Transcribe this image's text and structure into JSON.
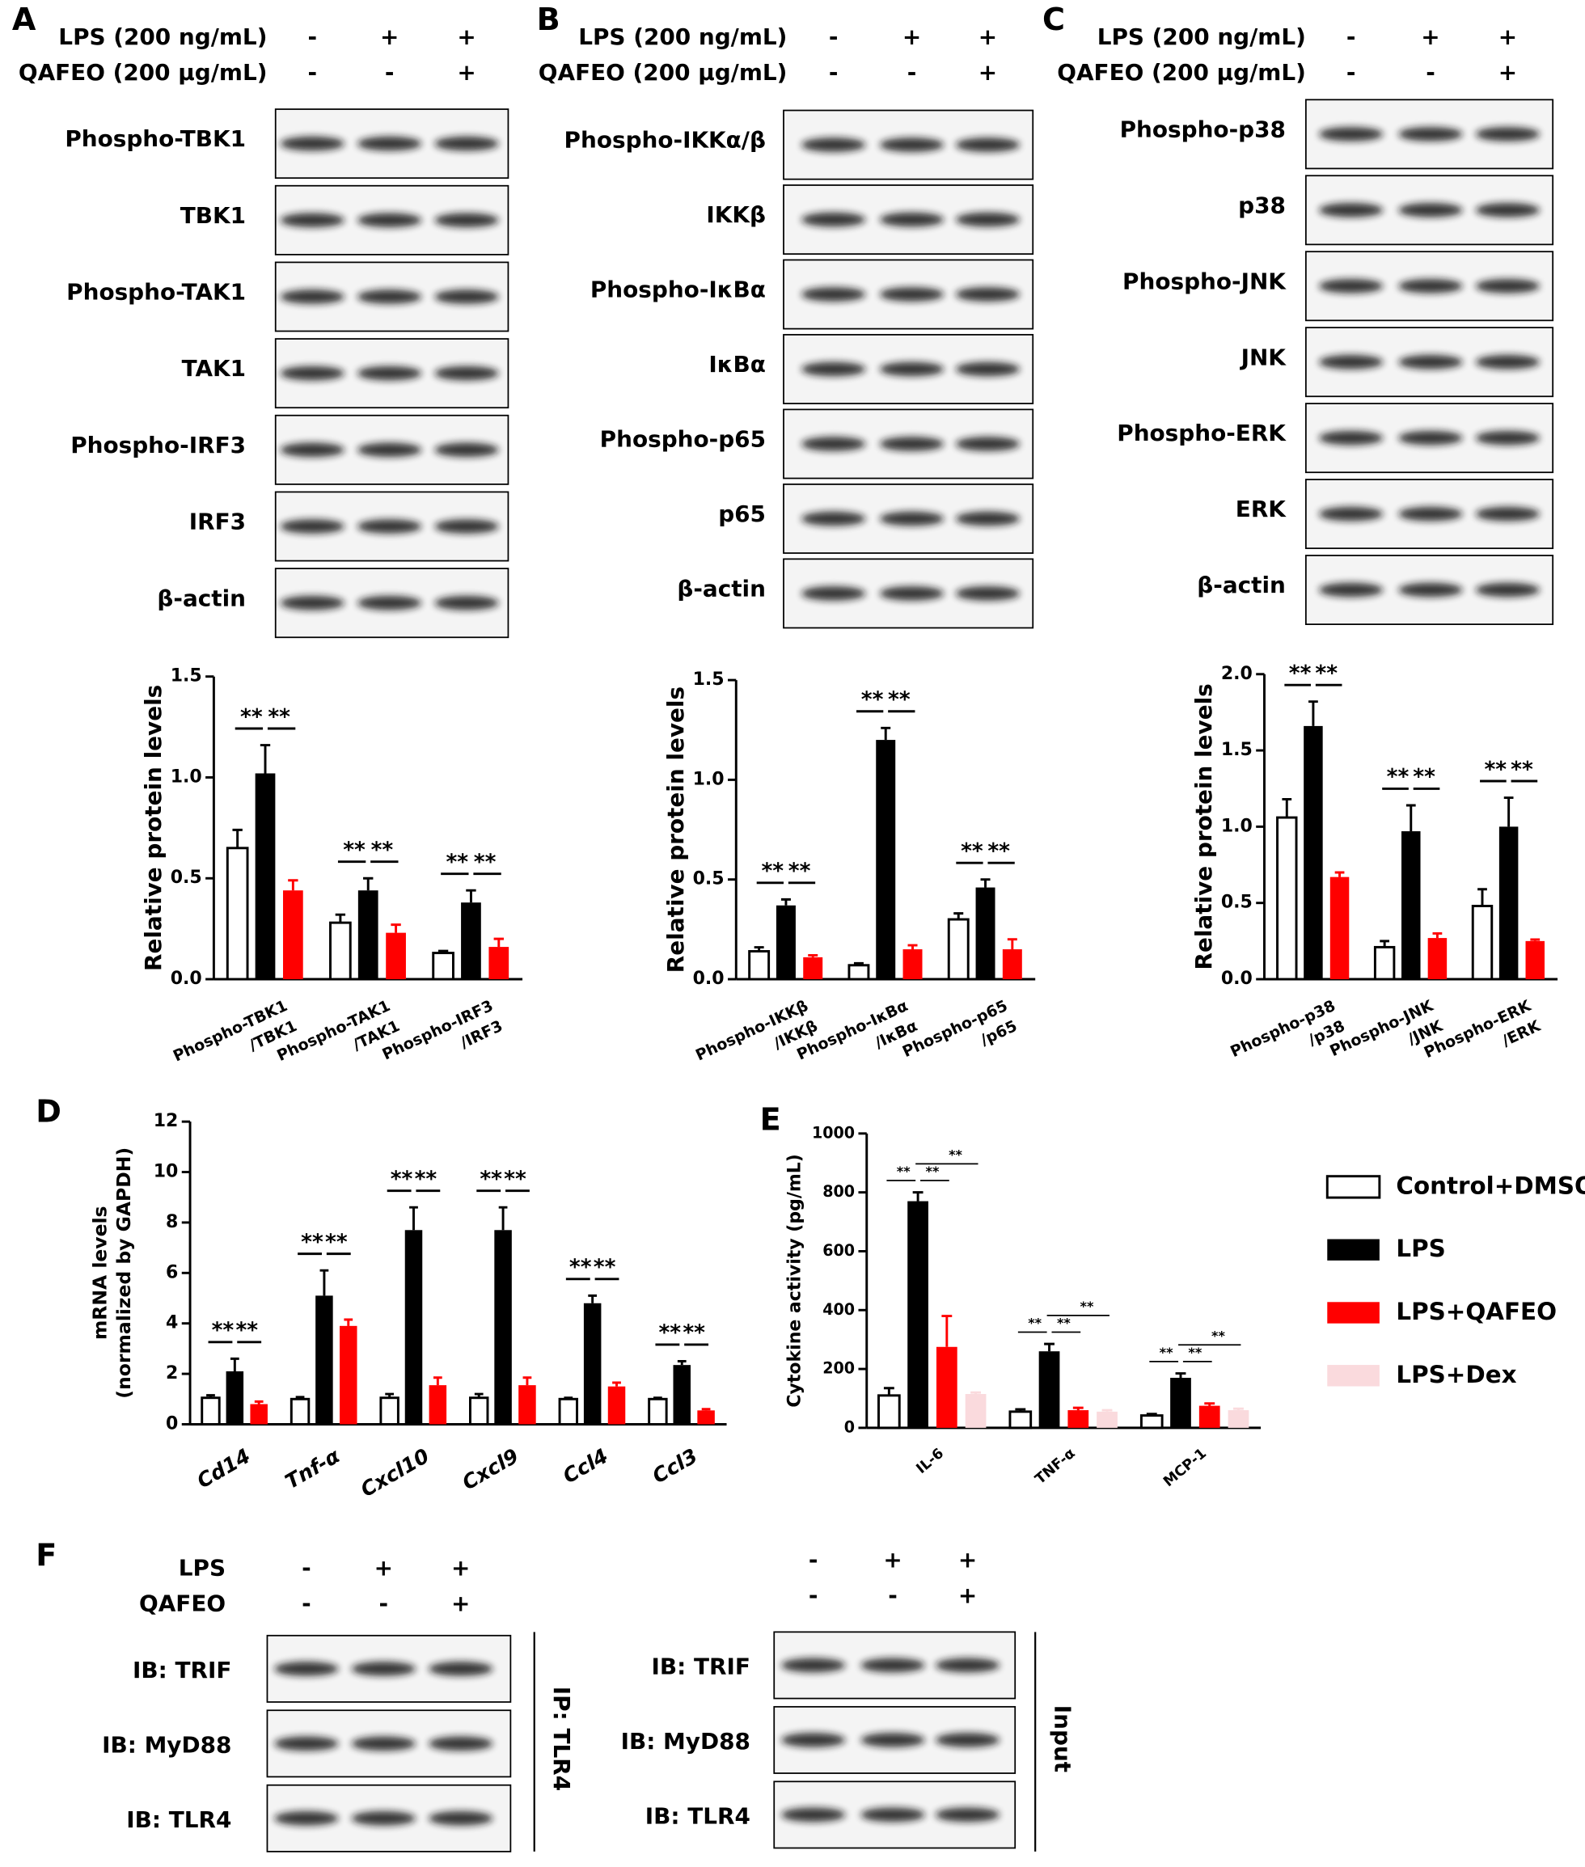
{
  "panel_labels": [
    "A",
    "B",
    "C",
    "D",
    "E",
    "F"
  ],
  "panels": [
    {
      "conditions": [
        {
          "label": "LPS (200 ng/mL)",
          "signs": [
            "-",
            "+",
            "+"
          ]
        },
        {
          "label": "QAFEO (200 μg/mL)",
          "signs": [
            "-",
            "-",
            "+"
          ]
        }
      ],
      "blots": [
        "Phospho-TBK1",
        "TBK1",
        "Phospho-TAK1",
        "TAK1",
        "Phospho-IRF3",
        "IRF3",
        "β-actin"
      ]
    },
    {
      "conditions": [
        {
          "label": "LPS (200 ng/mL)",
          "signs": [
            "-",
            "+",
            "+"
          ]
        },
        {
          "label": "QAFEO (200 μg/mL)",
          "signs": [
            "-",
            "-",
            "+"
          ]
        }
      ],
      "blots": [
        "Phospho-IKKα/β",
        "IKKβ",
        "Phospho-IκBα",
        "IκBα",
        "Phospho-p65",
        "p65",
        "β-actin"
      ]
    },
    {
      "conditions": [
        {
          "label": "LPS (200 ng/mL)",
          "signs": [
            "-",
            "+",
            "+"
          ]
        },
        {
          "label": "QAFEO (200 μg/mL)",
          "signs": [
            "-",
            "-",
            "+"
          ]
        }
      ],
      "blots": [
        "Phospho-p38",
        "p38",
        "Phospho-JNK",
        "JNK",
        "Phospho-ERK",
        "ERK",
        "β-actin"
      ]
    }
  ],
  "coip": {
    "conditions": [
      {
        "label": "LPS",
        "signs": [
          "-",
          "+",
          "+"
        ]
      },
      {
        "label": "QAFEO",
        "signs": [
          "-",
          "-",
          "+"
        ]
      }
    ],
    "ip": {
      "blots": [
        "IB: TRIF",
        "IB: MyD88",
        "IB: TLR4"
      ],
      "side_label": "IP: TLR4"
    },
    "input": {
      "signs": [
        [
          "-",
          "+",
          "+"
        ],
        [
          "-",
          "-",
          "+"
        ]
      ],
      "blots": [
        "IB: TRIF",
        "IB: MyD88",
        "IB: TLR4"
      ],
      "side_label": "Input"
    }
  },
  "chart_data": [
    {
      "type": "bar",
      "ylabel": "Relative protein levels",
      "categories": [
        [
          "Phospho-TBK1",
          "/TBK1"
        ],
        [
          "Phospho-TAK1",
          "/TAK1"
        ],
        [
          "Phospho-IRF3",
          "/IRF3"
        ]
      ],
      "series": [
        {
          "color": "#ffffff",
          "values": [
            0.65,
            0.28,
            0.13
          ],
          "errors": [
            0.09,
            0.04,
            0.01
          ]
        },
        {
          "color": "#000000",
          "values": [
            1.02,
            0.44,
            0.38
          ],
          "errors": [
            0.14,
            0.06,
            0.06
          ]
        },
        {
          "color": "#ff0000",
          "values": [
            0.44,
            0.23,
            0.16
          ],
          "errors": [
            0.05,
            0.04,
            0.04
          ]
        }
      ],
      "significance": [
        [
          "**",
          "**"
        ],
        [
          "**",
          "**"
        ],
        [
          "**",
          "**"
        ]
      ],
      "ylim": [
        0,
        1.5
      ],
      "yticks": [
        {
          "value": 0,
          "label": "0.0"
        },
        0.5,
        {
          "value": 1,
          "label": "1.0"
        },
        1.5
      ]
    },
    {
      "type": "bar",
      "ylabel": "Relative protein levels",
      "categories": [
        [
          "Phospho-IKKβ",
          "/IKKβ"
        ],
        [
          "Phospho-IκBα",
          "/IκBα"
        ],
        [
          "Phospho-p65",
          "/p65"
        ]
      ],
      "series": [
        {
          "color": "#ffffff",
          "values": [
            0.14,
            0.07,
            0.3
          ],
          "errors": [
            0.02,
            0.01,
            0.03
          ]
        },
        {
          "color": "#000000",
          "values": [
            0.37,
            1.2,
            0.46
          ],
          "errors": [
            0.03,
            0.06,
            0.04
          ]
        },
        {
          "color": "#ff0000",
          "values": [
            0.11,
            0.15,
            0.15
          ],
          "errors": [
            0.01,
            0.02,
            0.05
          ]
        }
      ],
      "significance": [
        [
          "**",
          "**"
        ],
        [
          "**",
          "**"
        ],
        [
          "**",
          "**"
        ]
      ],
      "ylim": [
        0,
        1.5
      ],
      "yticks": [
        {
          "value": 0,
          "label": "0.0"
        },
        0.5,
        {
          "value": 1,
          "label": "1.0"
        },
        1.5
      ]
    },
    {
      "type": "bar",
      "ylabel": "Relative protein levels",
      "categories": [
        [
          "Phospho-p38",
          "/p38"
        ],
        [
          "Phospho-JNK",
          "/JNK"
        ],
        [
          "Phospho-ERK",
          "/ERK"
        ]
      ],
      "series": [
        {
          "color": "#ffffff",
          "values": [
            1.06,
            0.21,
            0.48
          ],
          "errors": [
            0.12,
            0.04,
            0.11
          ]
        },
        {
          "color": "#000000",
          "values": [
            1.66,
            0.97,
            1.0
          ],
          "errors": [
            0.16,
            0.17,
            0.19
          ]
        },
        {
          "color": "#ff0000",
          "values": [
            0.67,
            0.27,
            0.25
          ],
          "errors": [
            0.03,
            0.03,
            0.01
          ]
        }
      ],
      "significance": [
        [
          "**",
          "**"
        ],
        [
          "**",
          "**"
        ],
        [
          "**",
          "**"
        ]
      ],
      "ylim": [
        0,
        2
      ],
      "yticks": [
        {
          "value": 0,
          "label": "0.0"
        },
        0.5,
        {
          "value": 1,
          "label": "1.0"
        },
        1.5,
        {
          "value": 2,
          "label": "2.0"
        }
      ]
    },
    {
      "type": "bar",
      "ylabel": [
        "mRNA levels",
        "(normalized by GAPDH)"
      ],
      "categories": [
        "Cd14",
        "Tnf-α",
        "Cxcl10",
        "Cxcl9",
        "Ccl4",
        "Ccl3"
      ],
      "series": [
        {
          "color": "#ffffff",
          "values": [
            1.05,
            1.0,
            1.05,
            1.05,
            1.0,
            1.0
          ],
          "errors": [
            0.1,
            0.08,
            0.15,
            0.15,
            0.05,
            0.05
          ]
        },
        {
          "color": "#000000",
          "values": [
            2.1,
            5.1,
            7.7,
            7.7,
            4.8,
            2.35
          ],
          "errors": [
            0.5,
            1.0,
            0.9,
            0.9,
            0.3,
            0.15
          ]
        },
        {
          "color": "#ff0000",
          "values": [
            0.8,
            3.9,
            1.55,
            1.55,
            1.5,
            0.55
          ],
          "errors": [
            0.1,
            0.25,
            0.3,
            0.3,
            0.15,
            0.05
          ]
        }
      ],
      "significance": [
        [
          "**",
          "**"
        ],
        [
          "**",
          "**"
        ],
        [
          "**",
          "**"
        ],
        [
          "**",
          "**"
        ],
        [
          "**",
          "**"
        ],
        [
          "**",
          "**"
        ]
      ],
      "ylim": [
        0,
        12
      ],
      "yticks": [
        0,
        2,
        4,
        6,
        8,
        10,
        12
      ]
    },
    {
      "type": "bar",
      "ylabel": "Cytokine activity (pg/mL)",
      "categories": [
        "IL-6",
        "TNF-α",
        "MCP-1"
      ],
      "series": [
        {
          "name": "Control+DMSO",
          "color": "#ffffff",
          "values": [
            110,
            55,
            42
          ],
          "errors": [
            25,
            8,
            5
          ]
        },
        {
          "name": "LPS",
          "color": "#000000",
          "values": [
            770,
            260,
            170
          ],
          "errors": [
            30,
            25,
            15
          ]
        },
        {
          "name": "LPS+QAFEO",
          "color": "#ff0000",
          "values": [
            275,
            60,
            75
          ],
          "errors": [
            105,
            8,
            8
          ]
        },
        {
          "name": "LPS+Dex",
          "color": "#fadadd",
          "values": [
            115,
            55,
            60
          ],
          "errors": [
            5,
            5,
            5
          ]
        }
      ],
      "significance": [
        [
          "**",
          "**",
          "**"
        ],
        [
          "**",
          "**",
          "**"
        ],
        [
          "**",
          "**",
          "**"
        ]
      ],
      "ylim": [
        0,
        1000
      ],
      "yticks": [
        0,
        200,
        400,
        600,
        800,
        1000
      ],
      "legend": "right"
    }
  ]
}
